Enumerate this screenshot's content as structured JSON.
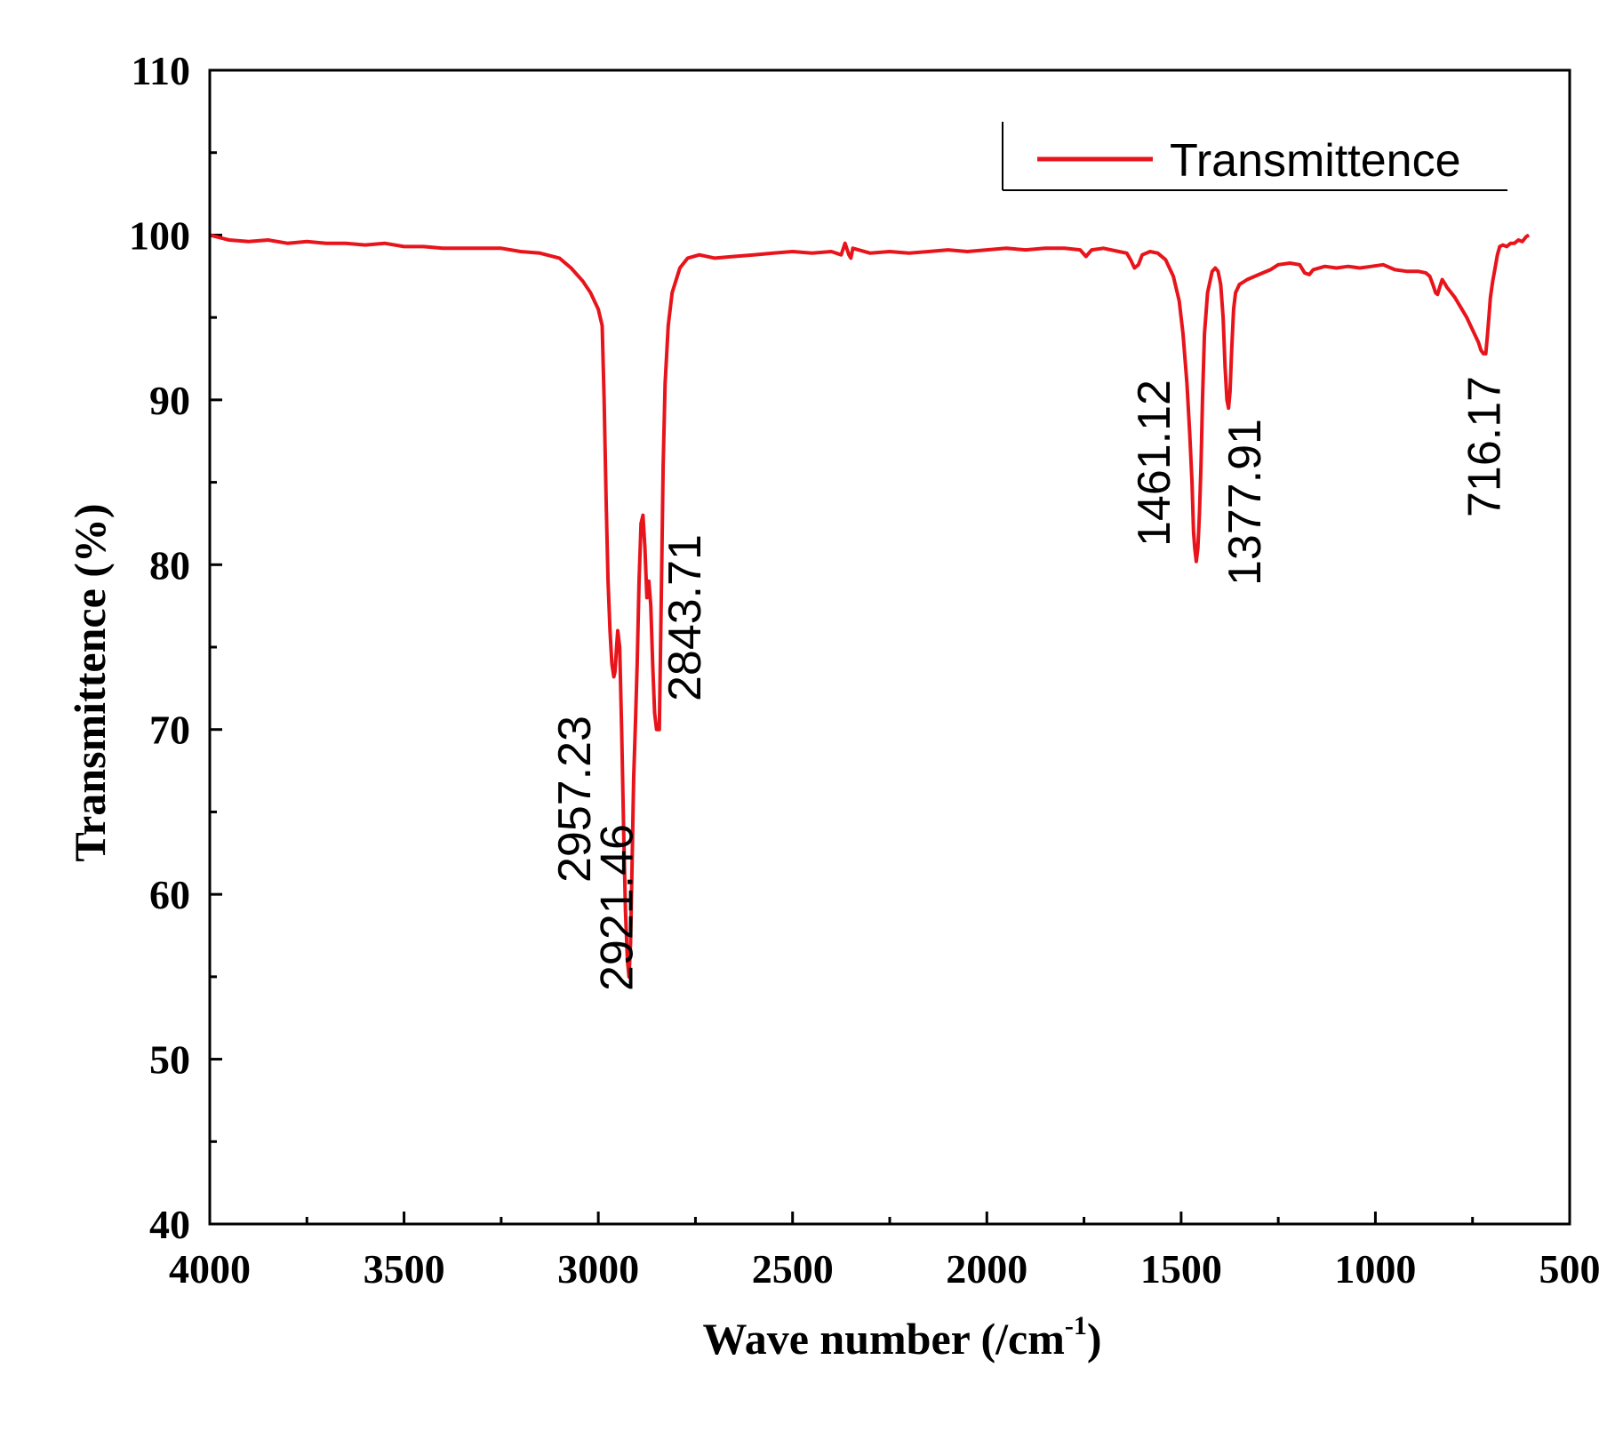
{
  "chart_data": {
    "type": "line",
    "title": "",
    "xlabel": "Wave number (/cm",
    "xlabel_sup": "-1",
    "xlabel_close": ")",
    "ylabel": "Transmittence (%)",
    "xlim": [
      4000,
      500
    ],
    "ylim": [
      40,
      110
    ],
    "xticks": [
      4000,
      3500,
      3000,
      2500,
      2000,
      1500,
      1000,
      500
    ],
    "yticks": [
      40,
      50,
      60,
      70,
      80,
      90,
      100,
      110
    ],
    "grid": false,
    "legend_position": "top-right",
    "series": [
      {
        "name": "Transmittence",
        "color": "#e8141b",
        "points": [
          [
            4000,
            100.0
          ],
          [
            3950,
            99.7
          ],
          [
            3900,
            99.6
          ],
          [
            3850,
            99.7
          ],
          [
            3800,
            99.5
          ],
          [
            3750,
            99.6
          ],
          [
            3700,
            99.5
          ],
          [
            3650,
            99.5
          ],
          [
            3600,
            99.4
          ],
          [
            3550,
            99.5
          ],
          [
            3500,
            99.3
          ],
          [
            3450,
            99.3
          ],
          [
            3400,
            99.2
          ],
          [
            3350,
            99.2
          ],
          [
            3300,
            99.2
          ],
          [
            3250,
            99.2
          ],
          [
            3200,
            99.0
          ],
          [
            3150,
            98.9
          ],
          [
            3100,
            98.6
          ],
          [
            3070,
            98.0
          ],
          [
            3040,
            97.2
          ],
          [
            3020,
            96.5
          ],
          [
            3000,
            95.5
          ],
          [
            2990,
            94.5
          ],
          [
            2985,
            90.0
          ],
          [
            2980,
            84.0
          ],
          [
            2975,
            79.0
          ],
          [
            2970,
            76.0
          ],
          [
            2965,
            74.0
          ],
          [
            2960,
            73.2
          ],
          [
            2957,
            73.5
          ],
          [
            2953,
            75.0
          ],
          [
            2950,
            76.0
          ],
          [
            2945,
            75.0
          ],
          [
            2940,
            70.0
          ],
          [
            2935,
            64.0
          ],
          [
            2930,
            59.0
          ],
          [
            2925,
            56.0
          ],
          [
            2921,
            55.0
          ],
          [
            2917,
            57.0
          ],
          [
            2913,
            62.0
          ],
          [
            2909,
            67.0
          ],
          [
            2905,
            70.0
          ],
          [
            2900,
            74.0
          ],
          [
            2895,
            79.0
          ],
          [
            2890,
            82.5
          ],
          [
            2885,
            83.0
          ],
          [
            2880,
            81.0
          ],
          [
            2875,
            78.0
          ],
          [
            2870,
            79.0
          ],
          [
            2865,
            77.5
          ],
          [
            2860,
            74.0
          ],
          [
            2855,
            71.0
          ],
          [
            2850,
            70.0
          ],
          [
            2843,
            70.0
          ],
          [
            2838,
            78.0
          ],
          [
            2833,
            86.0
          ],
          [
            2828,
            91.0
          ],
          [
            2820,
            94.5
          ],
          [
            2810,
            96.5
          ],
          [
            2790,
            98.0
          ],
          [
            2770,
            98.6
          ],
          [
            2740,
            98.8
          ],
          [
            2700,
            98.6
          ],
          [
            2650,
            98.7
          ],
          [
            2600,
            98.8
          ],
          [
            2550,
            98.9
          ],
          [
            2500,
            99.0
          ],
          [
            2450,
            98.9
          ],
          [
            2400,
            99.0
          ],
          [
            2375,
            98.8
          ],
          [
            2365,
            99.5
          ],
          [
            2355,
            98.8
          ],
          [
            2350,
            98.6
          ],
          [
            2345,
            99.2
          ],
          [
            2300,
            98.9
          ],
          [
            2250,
            99.0
          ],
          [
            2200,
            98.9
          ],
          [
            2150,
            99.0
          ],
          [
            2100,
            99.1
          ],
          [
            2050,
            99.0
          ],
          [
            2000,
            99.1
          ],
          [
            1950,
            99.2
          ],
          [
            1900,
            99.1
          ],
          [
            1850,
            99.2
          ],
          [
            1800,
            99.2
          ],
          [
            1760,
            99.1
          ],
          [
            1745,
            98.7
          ],
          [
            1730,
            99.1
          ],
          [
            1700,
            99.2
          ],
          [
            1660,
            99.0
          ],
          [
            1640,
            98.9
          ],
          [
            1630,
            98.5
          ],
          [
            1620,
            98.0
          ],
          [
            1610,
            98.2
          ],
          [
            1600,
            98.8
          ],
          [
            1580,
            99.0
          ],
          [
            1560,
            98.9
          ],
          [
            1540,
            98.5
          ],
          [
            1520,
            97.5
          ],
          [
            1505,
            96.0
          ],
          [
            1495,
            94.0
          ],
          [
            1485,
            91.0
          ],
          [
            1478,
            88.0
          ],
          [
            1472,
            85.0
          ],
          [
            1468,
            82.0
          ],
          [
            1465,
            81.0
          ],
          [
            1461,
            80.2
          ],
          [
            1457,
            81.0
          ],
          [
            1453,
            83.0
          ],
          [
            1449,
            86.0
          ],
          [
            1445,
            90.0
          ],
          [
            1440,
            94.0
          ],
          [
            1432,
            96.5
          ],
          [
            1420,
            97.8
          ],
          [
            1412,
            98.0
          ],
          [
            1405,
            97.8
          ],
          [
            1398,
            97.0
          ],
          [
            1392,
            95.0
          ],
          [
            1387,
            92.0
          ],
          [
            1382,
            90.0
          ],
          [
            1378,
            89.5
          ],
          [
            1374,
            90.5
          ],
          [
            1370,
            93.0
          ],
          [
            1365,
            95.5
          ],
          [
            1360,
            96.5
          ],
          [
            1350,
            97.0
          ],
          [
            1330,
            97.3
          ],
          [
            1300,
            97.6
          ],
          [
            1270,
            97.9
          ],
          [
            1250,
            98.2
          ],
          [
            1220,
            98.3
          ],
          [
            1195,
            98.2
          ],
          [
            1182,
            97.7
          ],
          [
            1170,
            97.6
          ],
          [
            1160,
            97.9
          ],
          [
            1130,
            98.1
          ],
          [
            1100,
            98.0
          ],
          [
            1070,
            98.1
          ],
          [
            1040,
            98.0
          ],
          [
            1010,
            98.1
          ],
          [
            980,
            98.2
          ],
          [
            950,
            97.9
          ],
          [
            920,
            97.8
          ],
          [
            890,
            97.8
          ],
          [
            870,
            97.7
          ],
          [
            860,
            97.5
          ],
          [
            852,
            97.0
          ],
          [
            845,
            96.5
          ],
          [
            840,
            96.4
          ],
          [
            835,
            96.8
          ],
          [
            828,
            97.3
          ],
          [
            820,
            97.0
          ],
          [
            815,
            96.8
          ],
          [
            805,
            96.5
          ],
          [
            795,
            96.2
          ],
          [
            785,
            95.8
          ],
          [
            775,
            95.4
          ],
          [
            765,
            95.0
          ],
          [
            755,
            94.5
          ],
          [
            745,
            94.0
          ],
          [
            735,
            93.5
          ],
          [
            728,
            93.0
          ],
          [
            722,
            92.8
          ],
          [
            716,
            92.8
          ],
          [
            712,
            93.8
          ],
          [
            708,
            95.0
          ],
          [
            704,
            96.2
          ],
          [
            698,
            97.2
          ],
          [
            692,
            98.0
          ],
          [
            686,
            98.8
          ],
          [
            680,
            99.3
          ],
          [
            672,
            99.4
          ],
          [
            662,
            99.3
          ],
          [
            652,
            99.5
          ],
          [
            642,
            99.5
          ],
          [
            632,
            99.7
          ],
          [
            622,
            99.6
          ],
          [
            612,
            99.9
          ],
          [
            605,
            100.0
          ]
        ]
      }
    ],
    "annotations": [
      {
        "text": "2957.23",
        "x": 2957,
        "y": 73.2
      },
      {
        "text": "2921.46",
        "x": 2921,
        "y": 55.0
      },
      {
        "text": "2843.71",
        "x": 2843,
        "y": 70.0
      },
      {
        "text": "1461.12",
        "x": 1461,
        "y": 80.2
      },
      {
        "text": "1377.91",
        "x": 1378,
        "y": 89.5
      },
      {
        "text": "716.17",
        "x": 716,
        "y": 92.8
      }
    ]
  }
}
